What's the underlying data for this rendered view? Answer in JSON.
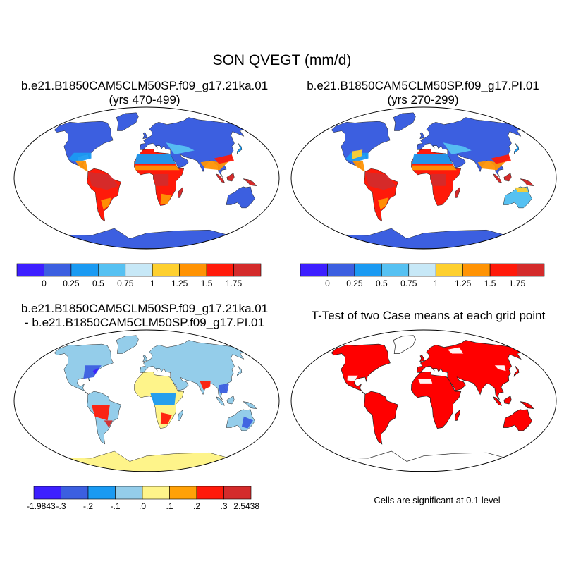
{
  "figure": {
    "title": "SON QVEGT (mm/d)",
    "significance_note": "Cells are significant at 0.1 level"
  },
  "panels": [
    {
      "id": "case-a-mean",
      "title_line1": "b.e21.B1850CAM5CLM50SP.f09_g17.21ka.01",
      "title_line2": "(yrs 470-499)",
      "type": "map",
      "palette": "levels",
      "coastline": "glacial"
    },
    {
      "id": "case-b-mean",
      "title_line1": "b.e21.B1850CAM5CLM50SP.f09_g17.PI.01",
      "title_line2": "(yrs 270-299)",
      "type": "map",
      "palette": "levels",
      "coastline": "present"
    },
    {
      "id": "difference",
      "title_line1": "b.e21.B1850CAM5CLM50SP.f09_g17.21ka.01",
      "title_line2": "- b.e21.B1850CAM5CLM50SP.f09_g17.PI.01",
      "type": "map",
      "palette": "diff",
      "coastline": "glacial"
    },
    {
      "id": "ttest",
      "title_line1": "T-Test of two Case means at each grid point",
      "type": "map",
      "palette": "significance",
      "coastline": "present",
      "significance_color": "#ff0000"
    }
  ],
  "colorbars": {
    "levels": {
      "labels": [
        "0",
        "0.25",
        "0.5",
        "0.75",
        "1",
        "1.25",
        "1.5",
        "1.75"
      ],
      "colors": [
        "#3d1fff",
        "#3c5fe0",
        "#1a9af2",
        "#56c1f2",
        "#c7e8f7",
        "#fed02f",
        "#ff9304",
        "#ff1a0a",
        "#d42b2b"
      ]
    },
    "diff": {
      "labels": [
        "-1.9843",
        "-.3",
        "-.2",
        "-.1",
        ".0",
        ".1",
        ".2",
        ".3",
        "2.5438"
      ],
      "colors": [
        "#3d1fff",
        "#3c5fe0",
        "#1a9af2",
        "#94cdea",
        "#fef48a",
        "#ffa107",
        "#ff1a0a",
        "#d42b2b"
      ]
    }
  }
}
